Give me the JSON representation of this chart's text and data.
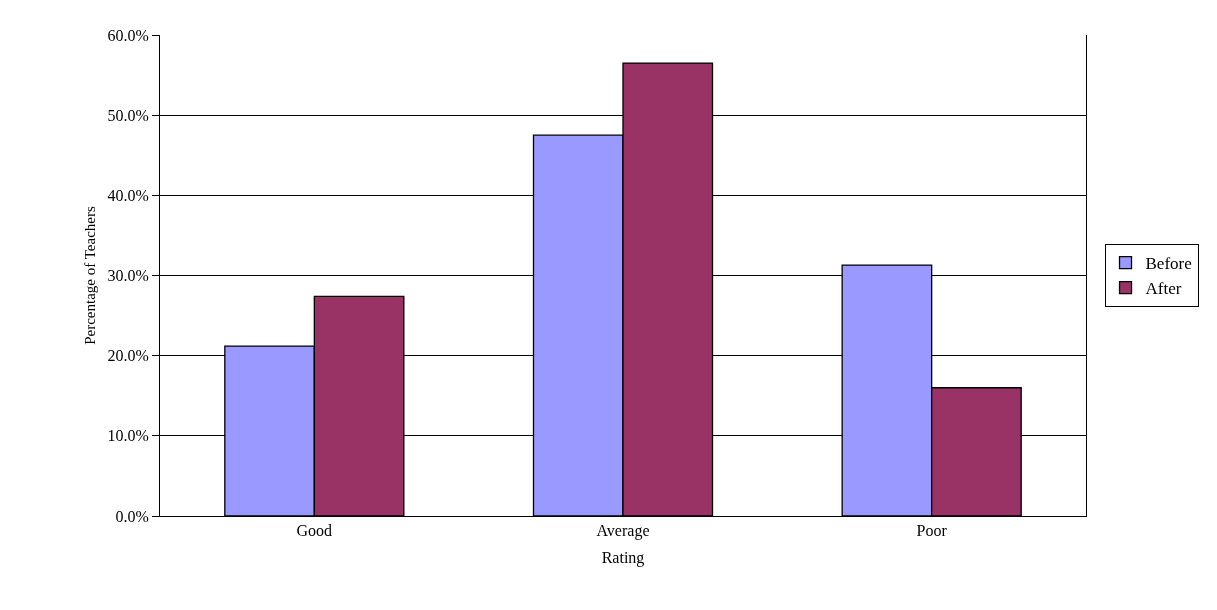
{
  "chart_data": {
    "type": "bar",
    "xlabel": "Rating",
    "ylabel": "Percentage of Teachers",
    "categories": [
      "Good",
      "Average",
      "Poor"
    ],
    "series": [
      {
        "name": "Before",
        "color": "#9999ff",
        "values": [
          21.2,
          47.5,
          31.3
        ]
      },
      {
        "name": "After",
        "color": "#993366",
        "values": [
          27.4,
          56.5,
          16.0
        ]
      }
    ],
    "ylim": [
      0,
      60
    ],
    "yticks": [
      {
        "value": 0,
        "label": "0.0%"
      },
      {
        "value": 10,
        "label": "10.0%"
      },
      {
        "value": 20,
        "label": "20.0%"
      },
      {
        "value": 30,
        "label": "30.0%"
      },
      {
        "value": 40,
        "label": "40.0%"
      },
      {
        "value": 50,
        "label": "50.0%"
      },
      {
        "value": 60,
        "label": "60.0%"
      }
    ],
    "grid": "y",
    "legend": "right"
  }
}
